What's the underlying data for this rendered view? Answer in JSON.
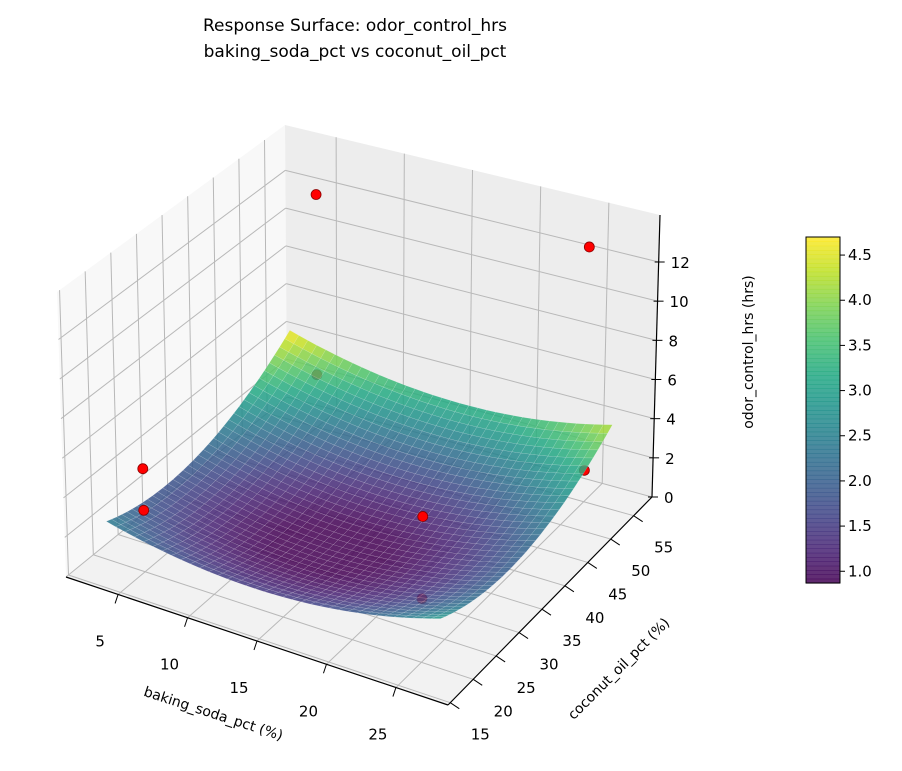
{
  "chart_data": {
    "type": "surface",
    "title": "Response Surface: odor_control_hrs",
    "subtitle": "baking_soda_pct vs coconut_oil_pct",
    "xlabel": "baking_soda_pct (%)",
    "ylabel": "coconut_oil_pct (%)",
    "zlabel": "odor_control_hrs (hrs)",
    "xlim": [
      1.25,
      28.75
    ],
    "ylim": [
      14.5,
      59
    ],
    "zlim": [
      0,
      14.4
    ],
    "xticks": [
      5,
      10,
      15,
      20,
      25
    ],
    "yticks": [
      15,
      20,
      25,
      30,
      35,
      40,
      45,
      50,
      55
    ],
    "zticks": [
      0,
      2,
      4,
      6,
      8,
      10,
      12
    ],
    "grid": true,
    "colormap": "viridis",
    "surface": {
      "x_range": [
        3,
        27
      ],
      "y_range": [
        18,
        55
      ],
      "coded_coefficients": {
        "intercept": 0.9,
        "x": 0.025,
        "y": 0.875,
        "x2": 1.2,
        "y2": 1.525,
        "xy": -0.225
      }
    },
    "points": [
      {
        "x": 5,
        "y": 20,
        "z": 5.2
      },
      {
        "x": 5,
        "y": 20,
        "z": 3.1
      },
      {
        "x": 25,
        "y": 20,
        "z": 7.1
      },
      {
        "x": 25,
        "y": 20,
        "z": 3.1
      },
      {
        "x": 5,
        "y": 55,
        "z": 12.2
      },
      {
        "x": 5,
        "y": 55,
        "z": 2.75
      },
      {
        "x": 25,
        "y": 55,
        "z": 13.0
      },
      {
        "x": 25,
        "y": 55,
        "z": 1.6
      }
    ],
    "point_color": "#ff0000",
    "colorbar": {
      "range": [
        0.87,
        4.7
      ],
      "ticks": [
        "1.0",
        "1.5",
        "2.0",
        "2.5",
        "3.0",
        "3.5",
        "4.0",
        "4.5"
      ]
    }
  }
}
